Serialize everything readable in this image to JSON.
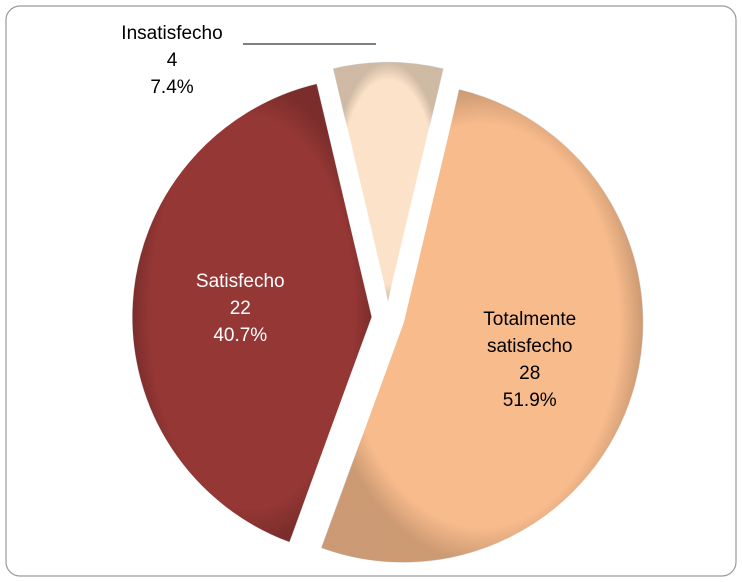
{
  "chart_data": {
    "type": "pie",
    "categories": [
      "Totalmente satisfecho",
      "Satisfecho",
      "Insatisfecho"
    ],
    "values": [
      28,
      22,
      4
    ],
    "percentage_labels": [
      "51.9%",
      "40.7%",
      "7.4%"
    ],
    "colors": [
      "#f8bb8c",
      "#953735",
      "#fce2c8"
    ],
    "label_colors": [
      "#000000",
      "#ffffff",
      "#000000"
    ]
  }
}
